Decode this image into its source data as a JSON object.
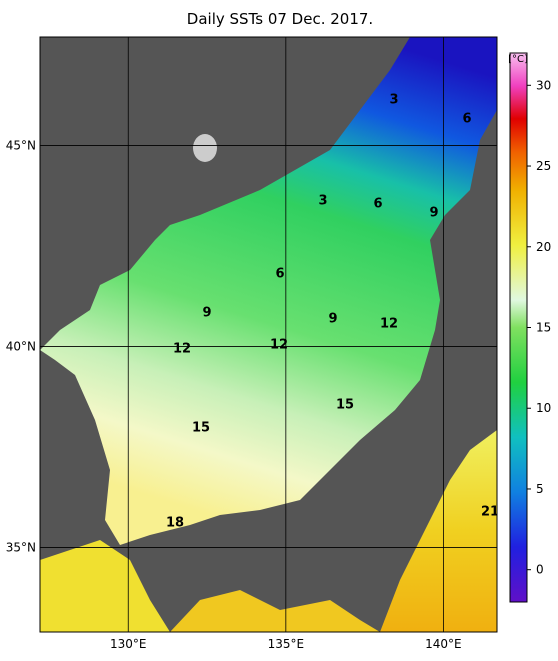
{
  "map": {
    "title": "Daily SSTs 07 Dec. 2017.",
    "lon_range": [
      127.2,
      141.7
    ],
    "lat_range": [
      32.9,
      47.7
    ],
    "lon_ticks": [
      {
        "value": 130,
        "label": "130°E"
      },
      {
        "value": 135,
        "label": "135°E"
      },
      {
        "value": 140,
        "label": "140°E"
      }
    ],
    "lat_ticks": [
      {
        "value": 35,
        "label": "35°N"
      },
      {
        "value": 40,
        "label": "40°N"
      },
      {
        "value": 45,
        "label": "45°N"
      }
    ],
    "colorbar": {
      "unit": "[°C]",
      "range": [
        -2,
        32
      ],
      "ticks": [
        0,
        5,
        10,
        15,
        20,
        25,
        30
      ]
    },
    "contour_labels": [
      3,
      6,
      3,
      6,
      9,
      6,
      9,
      9,
      12,
      12,
      12,
      15,
      15,
      18,
      21
    ]
  }
}
